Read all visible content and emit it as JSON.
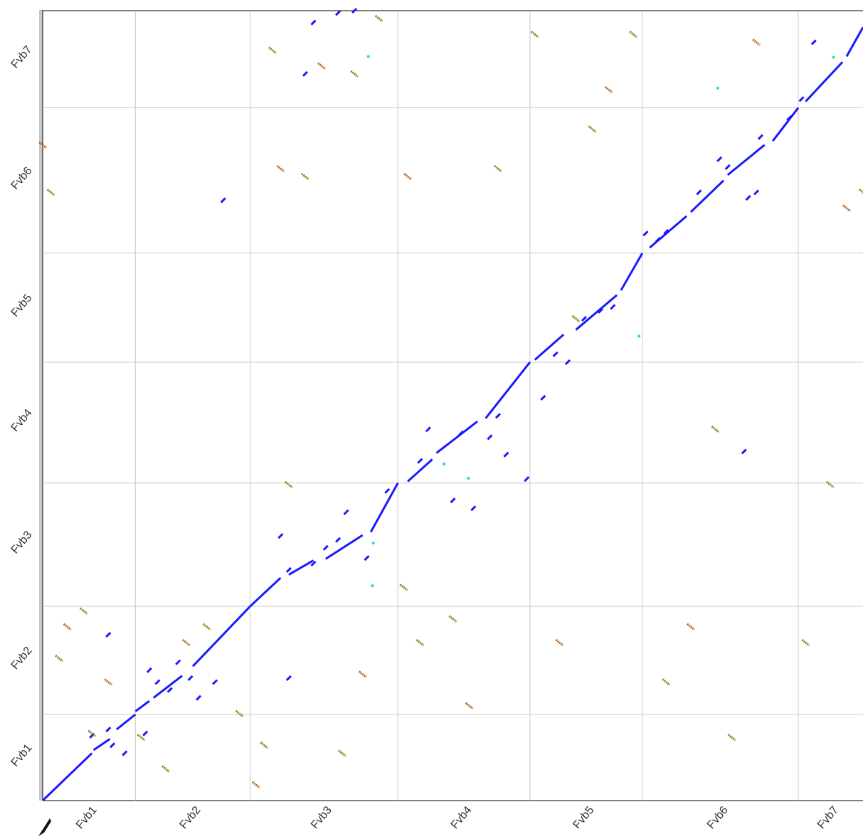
{
  "chart_data": {
    "type": "scatter",
    "title": "",
    "xlabel": "",
    "ylabel": "",
    "x_chromosomes": [
      {
        "name": "Fvb1",
        "start": 0,
        "end": 0.113
      },
      {
        "name": "Fvb2",
        "start": 0.113,
        "end": 0.253
      },
      {
        "name": "Fvb3",
        "start": 0.253,
        "end": 0.433
      },
      {
        "name": "Fvb4",
        "start": 0.433,
        "end": 0.594
      },
      {
        "name": "Fvb5",
        "start": 0.594,
        "end": 0.731
      },
      {
        "name": "Fvb6",
        "start": 0.731,
        "end": 0.921
      },
      {
        "name": "Fvb7",
        "start": 0.921,
        "end": 1.0
      }
    ],
    "y_chromosomes": [
      {
        "name": "Fvb1",
        "start": 0,
        "end": 0.109
      },
      {
        "name": "Fvb2",
        "start": 0.109,
        "end": 0.246
      },
      {
        "name": "Fvb3",
        "start": 0.246,
        "end": 0.402
      },
      {
        "name": "Fvb4",
        "start": 0.402,
        "end": 0.555
      },
      {
        "name": "Fvb5",
        "start": 0.555,
        "end": 0.693
      },
      {
        "name": "Fvb6",
        "start": 0.693,
        "end": 0.877
      },
      {
        "name": "Fvb7",
        "start": 0.877,
        "end": 1.0
      }
    ],
    "tick_labels_x": [
      "Fvb1",
      "Fvb2",
      "Fvb3",
      "Fvb4",
      "Fvb5",
      "Fvb6",
      "Fvb7"
    ],
    "tick_labels_y": [
      "Fvb1",
      "Fvb2",
      "Fvb3",
      "Fvb4",
      "Fvb5",
      "Fvb6",
      "Fvb7"
    ],
    "grid": true,
    "colors": {
      "forward": "#1a1aff",
      "reverse": "#7a8a10",
      "reverse_alt": "#b5651d",
      "highlight": "#22ddbb",
      "grid": "#c8c8c8"
    },
    "series": [
      {
        "kind": "forward",
        "segments": [
          [
            0.0,
            0.0,
            0.06,
            0.06
          ],
          [
            0.062,
            0.064,
            0.082,
            0.078
          ],
          [
            0.09,
            0.09,
            0.113,
            0.109
          ],
          [
            0.113,
            0.113,
            0.13,
            0.126
          ],
          [
            0.135,
            0.13,
            0.17,
            0.158
          ],
          [
            0.183,
            0.17,
            0.253,
            0.246
          ],
          [
            0.253,
            0.246,
            0.29,
            0.282
          ],
          [
            0.3,
            0.286,
            0.33,
            0.304
          ],
          [
            0.345,
            0.306,
            0.39,
            0.336
          ],
          [
            0.4,
            0.34,
            0.433,
            0.402
          ],
          [
            0.445,
            0.404,
            0.475,
            0.432
          ],
          [
            0.48,
            0.44,
            0.53,
            0.48
          ],
          [
            0.54,
            0.484,
            0.594,
            0.555
          ],
          [
            0.6,
            0.558,
            0.635,
            0.59
          ],
          [
            0.65,
            0.596,
            0.7,
            0.64
          ],
          [
            0.705,
            0.646,
            0.731,
            0.693
          ],
          [
            0.74,
            0.7,
            0.785,
            0.74
          ],
          [
            0.79,
            0.745,
            0.83,
            0.785
          ],
          [
            0.835,
            0.792,
            0.88,
            0.83
          ],
          [
            0.89,
            0.835,
            0.921,
            0.877
          ],
          [
            0.93,
            0.885,
            0.975,
            0.935
          ],
          [
            0.98,
            0.942,
            1.0,
            0.979
          ]
        ],
        "blocks": [
          [
            0.06,
            0.082
          ],
          [
            0.08,
            0.09
          ],
          [
            0.085,
            0.07
          ],
          [
            0.1,
            0.06
          ],
          [
            0.125,
            0.085
          ],
          [
            0.13,
            0.165
          ],
          [
            0.14,
            0.15
          ],
          [
            0.155,
            0.14
          ],
          [
            0.165,
            0.175
          ],
          [
            0.18,
            0.155
          ],
          [
            0.19,
            0.13
          ],
          [
            0.21,
            0.15
          ],
          [
            0.29,
            0.335
          ],
          [
            0.3,
            0.292
          ],
          [
            0.33,
            0.3
          ],
          [
            0.345,
            0.32
          ],
          [
            0.36,
            0.33
          ],
          [
            0.37,
            0.365
          ],
          [
            0.395,
            0.307
          ],
          [
            0.42,
            0.392
          ],
          [
            0.46,
            0.43
          ],
          [
            0.47,
            0.47
          ],
          [
            0.5,
            0.38
          ],
          [
            0.51,
            0.465
          ],
          [
            0.525,
            0.37
          ],
          [
            0.545,
            0.46
          ],
          [
            0.555,
            0.487
          ],
          [
            0.565,
            0.438
          ],
          [
            0.59,
            0.407
          ],
          [
            0.61,
            0.51
          ],
          [
            0.625,
            0.565
          ],
          [
            0.64,
            0.555
          ],
          [
            0.66,
            0.61
          ],
          [
            0.68,
            0.62
          ],
          [
            0.695,
            0.625
          ],
          [
            0.735,
            0.718
          ],
          [
            0.75,
            0.71
          ],
          [
            0.76,
            0.72
          ],
          [
            0.8,
            0.77
          ],
          [
            0.825,
            0.812
          ],
          [
            0.835,
            0.802
          ],
          [
            0.86,
            0.763
          ],
          [
            0.875,
            0.84
          ],
          [
            0.91,
            0.864
          ],
          [
            0.925,
            0.888
          ],
          [
            0.08,
            0.21
          ],
          [
            0.3,
            0.155
          ],
          [
            0.22,
            0.76
          ],
          [
            0.32,
            0.92
          ],
          [
            0.33,
            0.985
          ],
          [
            0.36,
            0.997
          ],
          [
            0.38,
            1.0
          ],
          [
            0.855,
            0.442
          ],
          [
            0.87,
            0.77
          ],
          [
            0.94,
            0.96
          ]
        ]
      },
      {
        "kind": "reverse",
        "segments": [
          [
            0.0,
            0.83
          ],
          [
            0.01,
            0.77
          ],
          [
            0.02,
            0.18
          ],
          [
            0.03,
            0.22
          ],
          [
            0.05,
            0.24
          ],
          [
            0.06,
            0.085
          ],
          [
            0.08,
            0.15
          ],
          [
            0.12,
            0.08
          ],
          [
            0.15,
            0.04
          ],
          [
            0.175,
            0.2
          ],
          [
            0.2,
            0.22
          ],
          [
            0.24,
            0.11
          ],
          [
            0.26,
            0.02
          ],
          [
            0.27,
            0.07
          ],
          [
            0.28,
            0.95
          ],
          [
            0.29,
            0.8
          ],
          [
            0.3,
            0.4
          ],
          [
            0.32,
            0.79
          ],
          [
            0.34,
            0.93
          ],
          [
            0.365,
            0.06
          ],
          [
            0.38,
            0.92
          ],
          [
            0.39,
            0.16
          ],
          [
            0.41,
            0.99
          ],
          [
            0.44,
            0.27
          ],
          [
            0.445,
            0.79
          ],
          [
            0.46,
            0.2
          ],
          [
            0.5,
            0.23
          ],
          [
            0.52,
            0.12
          ],
          [
            0.555,
            0.8
          ],
          [
            0.6,
            0.97
          ],
          [
            0.63,
            0.2
          ],
          [
            0.65,
            0.61
          ],
          [
            0.67,
            0.85
          ],
          [
            0.69,
            0.9
          ],
          [
            0.72,
            0.97
          ],
          [
            0.76,
            0.15
          ],
          [
            0.79,
            0.22
          ],
          [
            0.82,
            0.47
          ],
          [
            0.84,
            0.08
          ],
          [
            0.87,
            0.96
          ],
          [
            0.93,
            0.2
          ],
          [
            0.96,
            0.4
          ],
          [
            0.98,
            0.75
          ],
          [
            1.0,
            0.77
          ]
        ]
      },
      {
        "kind": "highlight",
        "points": [
          [
            0.397,
            0.942
          ],
          [
            0.403,
            0.326
          ],
          [
            0.402,
            0.272
          ],
          [
            0.489,
            0.426
          ],
          [
            0.519,
            0.408
          ],
          [
            0.727,
            0.588
          ],
          [
            0.823,
            0.902
          ],
          [
            0.964,
            0.941
          ]
        ]
      }
    ]
  }
}
